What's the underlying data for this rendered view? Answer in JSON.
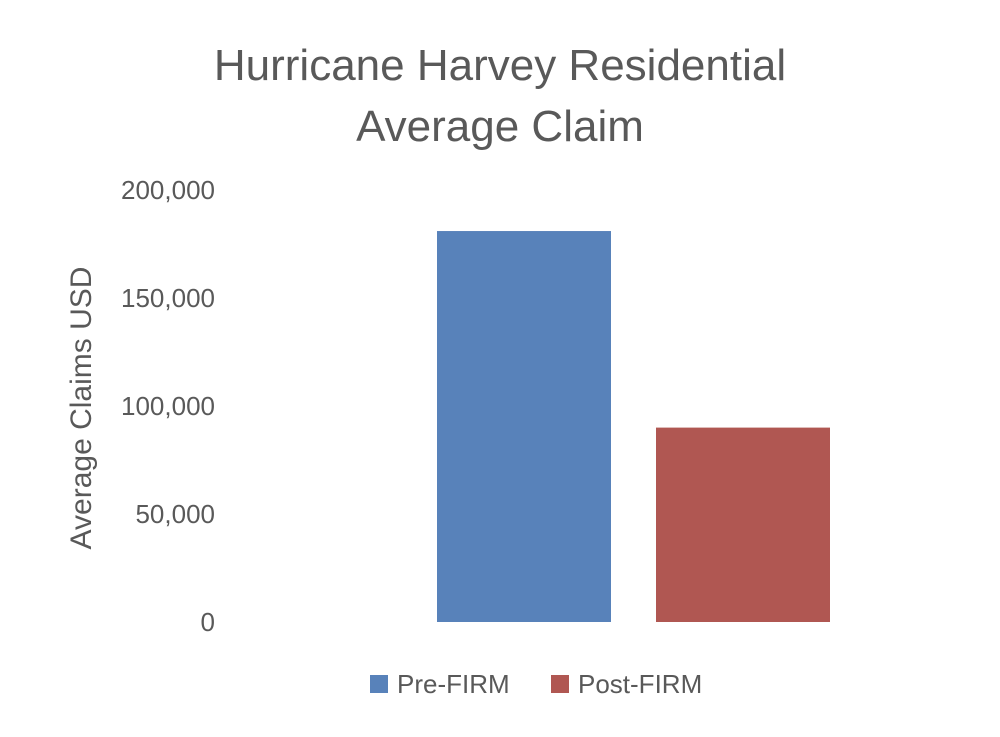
{
  "chart_data": {
    "type": "bar",
    "title_lines": [
      "Hurricane Harvey Residential",
      "Average Claim"
    ],
    "ylabel": "Average Claims USD",
    "xlabel": "",
    "ylim": [
      0,
      200000
    ],
    "y_ticks": [
      0,
      50000,
      100000,
      150000,
      200000
    ],
    "y_tick_labels": [
      "0",
      "50,000",
      "100,000",
      "150,000",
      "200,000"
    ],
    "series": [
      {
        "name": "Pre-FIRM",
        "value": 181000,
        "color": "#5882BA"
      },
      {
        "name": "Post-FIRM",
        "value": 90000,
        "color": "#B05752"
      }
    ],
    "grid": false,
    "legend_position": "bottom"
  }
}
